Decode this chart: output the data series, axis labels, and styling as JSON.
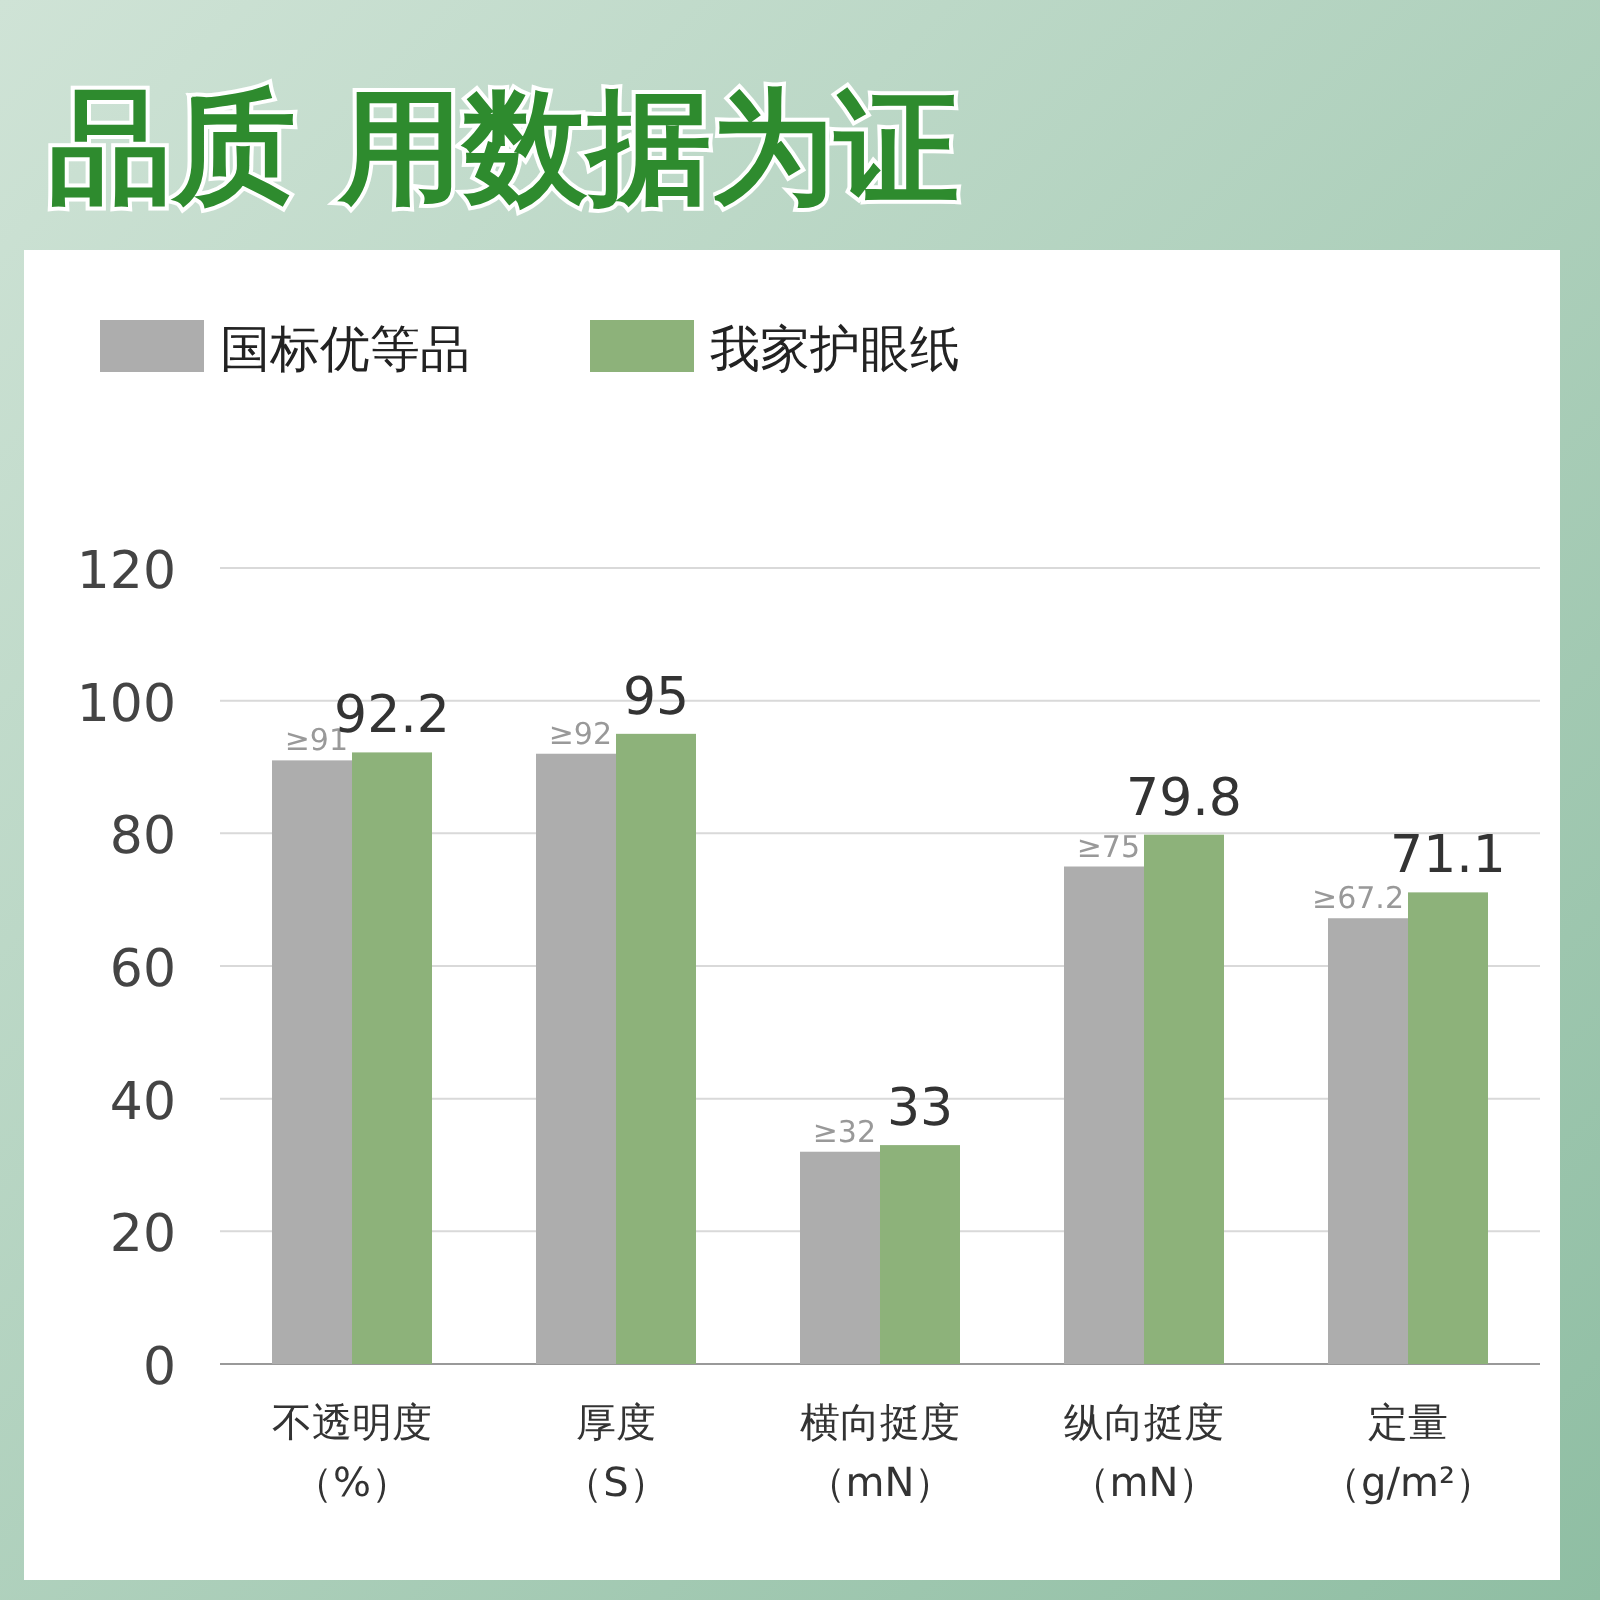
{
  "chart_data": {
    "type": "bar",
    "title": "品质 用数据为证",
    "categories": [
      "不透明度（%）",
      "厚度（S）",
      "横向挺度（mN）",
      "纵向挺度（mN）",
      "定量（g/m²）"
    ],
    "series": [
      {
        "name": "国标优等品",
        "color": "#adadad",
        "values": [
          91,
          92,
          32,
          75,
          67.2
        ],
        "value_labels": [
          "≥91",
          "≥92",
          "≥32",
          "≥75",
          "≥67.2"
        ]
      },
      {
        "name": "我家护眼纸",
        "color": "#8db27a",
        "values": [
          92.2,
          95,
          33,
          79.8,
          71.1
        ],
        "value_labels": [
          "92.2",
          "95",
          "33",
          "79.8",
          "71.1"
        ]
      }
    ],
    "ylim": [
      0,
      120
    ],
    "yticks": [
      0,
      20,
      40,
      60,
      80,
      100,
      120
    ],
    "grid": "y",
    "legend": "top left"
  }
}
